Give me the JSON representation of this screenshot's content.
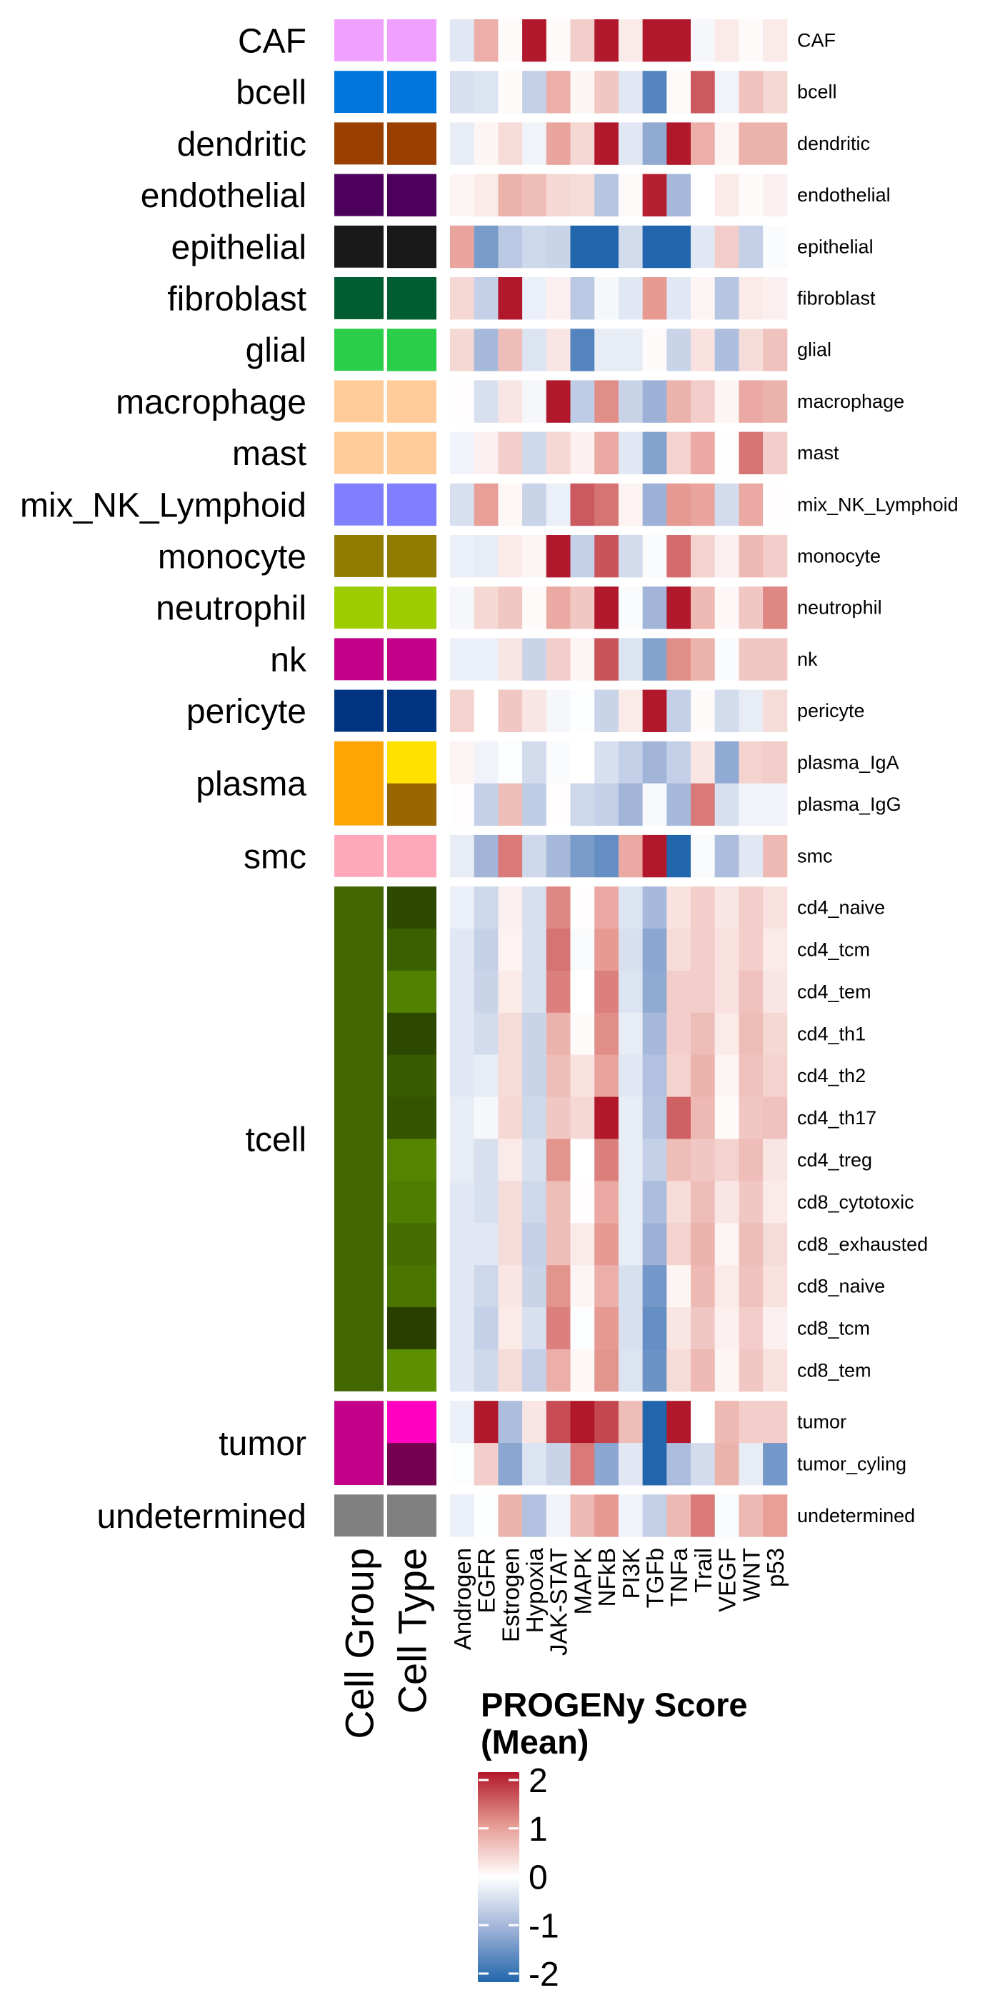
{
  "chart_data": {
    "type": "heatmap",
    "columns": [
      "Androgen",
      "EGFR",
      "Estrogen",
      "Hypoxia",
      "JAK-STAT",
      "MAPK",
      "NFkB",
      "PI3K",
      "TGFb",
      "TNFa",
      "Trail",
      "VEGF",
      "WNT",
      "p53"
    ],
    "annotation_titles": [
      "Cell Group",
      "Cell Type"
    ],
    "value_range": [
      -2,
      2
    ],
    "colorscale": {
      "low": "#2166AC",
      "mid_low": "#9DB1D7",
      "mid": "#FFFFFF",
      "mid_high": "#E69A92",
      "high": "#B2182B"
    },
    "legend": {
      "title_lines": [
        "PROGENy Score",
        "(Mean)"
      ],
      "ticks": [
        2,
        1,
        0,
        -1,
        -2
      ],
      "tick_labels": [
        "2",
        "1",
        "0",
        "-1",
        "-2"
      ]
    },
    "groups": [
      {
        "name": "CAF",
        "color": "#F0A0FF",
        "rows": [
          {
            "label": "CAF",
            "color": "#F0A0FF",
            "values": [
              -0.3,
              0.8,
              0.05,
              2,
              0.05,
              0.5,
              2,
              0.2,
              2,
              2,
              -0.1,
              0.2,
              0.05,
              0.2
            ]
          }
        ]
      },
      {
        "name": "bcell",
        "color": "#0075DC",
        "rows": [
          {
            "label": "bcell",
            "color": "#0075DC",
            "values": [
              -0.4,
              -0.35,
              0.05,
              -0.6,
              0.8,
              0.1,
              0.55,
              -0.3,
              -1.6,
              0.05,
              1.5,
              -0.15,
              0.6,
              0.4
            ]
          }
        ]
      },
      {
        "name": "dendritic",
        "color": "#993F00",
        "rows": [
          {
            "label": "dendritic",
            "color": "#993F00",
            "values": [
              -0.25,
              0.1,
              0.35,
              -0.15,
              0.9,
              0.4,
              2,
              -0.3,
              -1.1,
              2,
              0.8,
              0.1,
              0.75,
              0.75
            ]
          }
        ]
      },
      {
        "name": "endothelial",
        "color": "#4C005C",
        "rows": [
          {
            "label": "endothelial",
            "color": "#4C005C",
            "values": [
              0.1,
              0.2,
              0.75,
              0.65,
              0.4,
              0.35,
              -0.75,
              0.05,
              1.95,
              -0.9,
              0,
              0.2,
              0.05,
              0.15
            ]
          }
        ]
      },
      {
        "name": "epithelial",
        "color": "#191919",
        "rows": [
          {
            "label": "epithelial",
            "color": "#191919",
            "values": [
              0.9,
              -1.3,
              -0.7,
              -0.5,
              -0.55,
              -2,
              -2,
              -0.45,
              -2,
              -2,
              -0.3,
              0.5,
              -0.6,
              -0.05
            ]
          }
        ]
      },
      {
        "name": "fibroblast",
        "color": "#005C31",
        "rows": [
          {
            "label": "fibroblast",
            "color": "#005C31",
            "values": [
              0.4,
              -0.6,
              2,
              -0.2,
              0.15,
              -0.7,
              -0.1,
              -0.3,
              1.0,
              -0.3,
              0.1,
              -0.75,
              0.2,
              0.15
            ]
          }
        ]
      },
      {
        "name": "glial",
        "color": "#2BCE48",
        "rows": [
          {
            "label": "glial",
            "color": "#2BCE48",
            "values": [
              0.4,
              -0.9,
              0.65,
              -0.35,
              0.25,
              -1.6,
              -0.25,
              -0.25,
              0.05,
              -0.55,
              0.3,
              -0.85,
              0.35,
              0.6
            ]
          }
        ]
      },
      {
        "name": "macrophage",
        "color": "#FFCC99",
        "rows": [
          {
            "label": "macrophage",
            "color": "#FFCC99",
            "values": [
              0.02,
              -0.4,
              0.25,
              -0.1,
              2,
              -0.65,
              1.1,
              -0.55,
              -1.0,
              0.75,
              0.5,
              0.1,
              0.85,
              0.75
            ]
          }
        ]
      },
      {
        "name": "mast",
        "color": "#FFCC99",
        "rows": [
          {
            "label": "mast",
            "color": "#FFCC99",
            "values": [
              -0.15,
              0.15,
              0.5,
              -0.5,
              0.4,
              0.15,
              0.85,
              -0.3,
              -1.2,
              0.45,
              0.85,
              -0.02,
              1.3,
              0.5
            ]
          }
        ]
      },
      {
        "name": "mix_NK_Lymphoid",
        "color": "#8080FF",
        "rows": [
          {
            "label": "mix_NK_Lymphoid",
            "color": "#8080FF",
            "values": [
              -0.4,
              0.95,
              0.08,
              -0.55,
              -0.2,
              1.5,
              1.3,
              0.12,
              -1.0,
              1.0,
              0.9,
              -0.45,
              0.85,
              0.02
            ]
          }
        ]
      },
      {
        "name": "monocyte",
        "color": "#8F7C00",
        "rows": [
          {
            "label": "monocyte",
            "color": "#8F7C00",
            "values": [
              -0.2,
              -0.25,
              0.2,
              0.1,
              2,
              -0.6,
              1.55,
              -0.45,
              -0.05,
              1.35,
              0.45,
              0.15,
              0.7,
              0.5
            ]
          }
        ]
      },
      {
        "name": "neutrophil",
        "color": "#9DCC00",
        "rows": [
          {
            "label": "neutrophil",
            "color": "#9DCC00",
            "values": [
              -0.1,
              0.4,
              0.55,
              0.05,
              0.85,
              0.55,
              2,
              -0.05,
              -0.95,
              2,
              0.7,
              0.07,
              0.55,
              1.15
            ]
          }
        ]
      },
      {
        "name": "nk",
        "color": "#C20088",
        "rows": [
          {
            "label": "nk",
            "color": "#C20088",
            "values": [
              -0.2,
              -0.2,
              0.25,
              -0.55,
              0.5,
              0.1,
              1.55,
              -0.35,
              -1.2,
              1.1,
              0.75,
              -0.05,
              0.55,
              0.55
            ]
          }
        ]
      },
      {
        "name": "pericyte",
        "color": "#003380",
        "rows": [
          {
            "label": "pericyte",
            "color": "#003380",
            "values": [
              0.45,
              0,
              0.55,
              0.25,
              -0.1,
              -0.03,
              -0.55,
              0.2,
              2,
              -0.6,
              0.05,
              -0.45,
              -0.25,
              0.35
            ]
          }
        ]
      },
      {
        "name": "plasma",
        "color": "#FFA405",
        "rows": [
          {
            "label": "plasma_IgA",
            "color": "#FFE100",
            "values": [
              0.1,
              -0.15,
              -0.03,
              -0.45,
              -0.05,
              0,
              -0.4,
              -0.6,
              -0.95,
              -0.6,
              0.25,
              -1.1,
              0.45,
              0.5
            ]
          },
          {
            "label": "plasma_IgG",
            "color": "#996600",
            "values": [
              0.03,
              -0.6,
              0.65,
              -0.65,
              0.02,
              -0.5,
              -0.6,
              -0.95,
              -0.08,
              -0.9,
              1.25,
              -0.4,
              -0.15,
              -0.15
            ]
          }
        ]
      },
      {
        "name": "smc",
        "color": "#FFA8BB",
        "rows": [
          {
            "label": "smc",
            "color": "#FFA8BB",
            "values": [
              -0.25,
              -0.95,
              1.25,
              -0.5,
              -0.9,
              -1.3,
              -1.45,
              0.85,
              2,
              -2,
              -0.07,
              -0.85,
              -0.3,
              0.7
            ]
          }
        ]
      },
      {
        "name": "tcell",
        "color": "#426600",
        "rows": [
          {
            "label": "cd4_naive",
            "color": "#2E4A00",
            "values": [
              -0.2,
              -0.5,
              0.15,
              -0.4,
              1.15,
              0.02,
              0.85,
              -0.35,
              -0.9,
              0.3,
              0.5,
              0.25,
              0.5,
              0.3
            ]
          },
          {
            "label": "cd4_tcm",
            "color": "#3A6000",
            "values": [
              -0.3,
              -0.6,
              0.12,
              -0.4,
              1.3,
              -0.07,
              1.0,
              -0.4,
              -1.15,
              0.35,
              0.5,
              0.3,
              0.5,
              0.2
            ]
          },
          {
            "label": "cd4_tem",
            "color": "#528000",
            "values": [
              -0.3,
              -0.55,
              0.2,
              -0.4,
              1.2,
              0,
              1.2,
              -0.35,
              -1.1,
              0.5,
              0.5,
              0.3,
              0.6,
              0.25
            ]
          },
          {
            "label": "cd4_th1",
            "color": "#2D4800",
            "values": [
              -0.3,
              -0.45,
              0.35,
              -0.55,
              0.75,
              0.05,
              1.1,
              -0.25,
              -0.9,
              0.5,
              0.65,
              0.2,
              0.65,
              0.4
            ]
          },
          {
            "label": "cd4_th2",
            "color": "#385C00",
            "values": [
              -0.3,
              -0.25,
              0.35,
              -0.55,
              0.65,
              0.3,
              0.9,
              -0.3,
              -0.8,
              0.45,
              0.75,
              0.1,
              0.6,
              0.45
            ]
          },
          {
            "label": "cd4_th17",
            "color": "#345400",
            "values": [
              -0.25,
              -0.1,
              0.4,
              -0.5,
              0.55,
              0.4,
              2,
              -0.25,
              -0.75,
              1.45,
              0.7,
              0.05,
              0.55,
              0.6
            ]
          },
          {
            "label": "cd4_treg",
            "color": "#558500",
            "values": [
              -0.25,
              -0.4,
              0.2,
              -0.4,
              1.05,
              0,
              1.2,
              -0.25,
              -0.6,
              0.65,
              0.55,
              0.45,
              0.65,
              0.25
            ]
          },
          {
            "label": "cd8_cytotoxic",
            "color": "#4E7D00",
            "values": [
              -0.3,
              -0.4,
              0.35,
              -0.5,
              0.65,
              0.02,
              0.85,
              -0.25,
              -0.85,
              0.35,
              0.65,
              0.25,
              0.55,
              0.2
            ]
          },
          {
            "label": "cd8_exhausted",
            "color": "#446C00",
            "values": [
              -0.3,
              -0.3,
              0.35,
              -0.6,
              0.65,
              0.2,
              1.0,
              -0.25,
              -1.0,
              0.45,
              0.75,
              0.1,
              0.65,
              0.35
            ]
          },
          {
            "label": "cd8_naive",
            "color": "#4A7600",
            "values": [
              -0.3,
              -0.5,
              0.25,
              -0.55,
              1.05,
              0.1,
              0.8,
              -0.4,
              -1.35,
              0.1,
              0.7,
              0.2,
              0.6,
              0.3
            ]
          },
          {
            "label": "cd8_tcm",
            "color": "#283F00",
            "values": [
              -0.3,
              -0.6,
              0.2,
              -0.4,
              1.2,
              -0.03,
              1.0,
              -0.4,
              -1.45,
              0.25,
              0.55,
              0.15,
              0.5,
              0.15
            ]
          },
          {
            "label": "cd8_tem",
            "color": "#5C9000",
            "values": [
              -0.3,
              -0.5,
              0.35,
              -0.6,
              0.8,
              0.08,
              1.05,
              -0.35,
              -1.4,
              0.35,
              0.7,
              0.1,
              0.55,
              0.3
            ]
          }
        ]
      },
      {
        "name": "tumor",
        "color": "#C20088",
        "rows": [
          {
            "label": "tumor",
            "color": "#FF00C0",
            "values": [
              -0.2,
              2,
              -0.85,
              0.25,
              1.6,
              2,
              1.65,
              0.65,
              -2,
              2,
              0,
              0.7,
              0.5,
              0.5
            ]
          },
          {
            "label": "tumor_cyling",
            "color": "#740050",
            "values": [
              -0.03,
              0.5,
              -1.15,
              -0.35,
              -0.55,
              1.25,
              -1.15,
              -0.3,
              -2,
              -0.85,
              -0.45,
              0.75,
              -0.25,
              -1.35
            ]
          }
        ]
      },
      {
        "name": "undetermined",
        "color": "#808080",
        "rows": [
          {
            "label": "undetermined",
            "color": "#808080",
            "values": [
              -0.2,
              -0.03,
              0.75,
              -0.8,
              -0.15,
              0.7,
              1.0,
              -0.15,
              -0.6,
              0.7,
              1.25,
              -0.07,
              0.7,
              0.95
            ]
          }
        ]
      }
    ]
  }
}
